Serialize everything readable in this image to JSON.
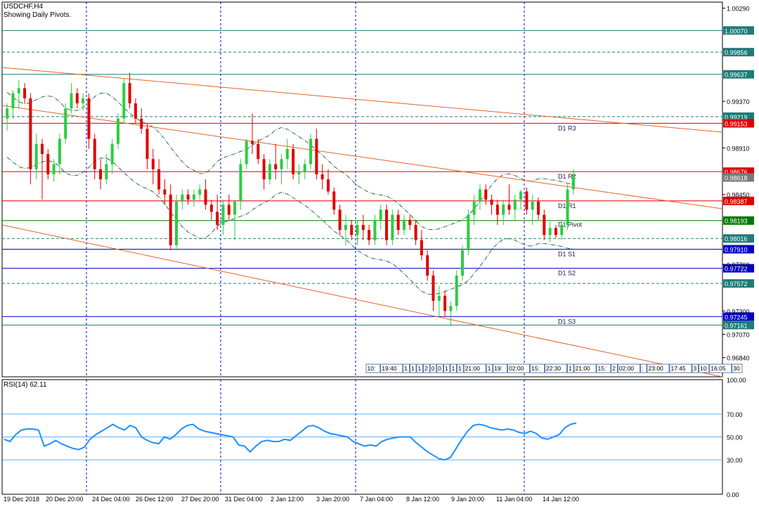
{
  "header": {
    "symbol": "USDCHF,H4",
    "subtitle": "Showing Daily Pivots."
  },
  "colors": {
    "bull": "#2ecc40",
    "bear": "#e00000",
    "trendline": "#e0652a",
    "pivot_red": "#e00000",
    "pivot_blue": "#0000cc",
    "pivot_green": "#007a00",
    "teal": "#1e7b78",
    "band": "#2a6b45",
    "rsi_line": "#1e90ff",
    "grid_v": "#0000cc"
  },
  "chart_data": [
    {
      "type": "candlestick",
      "title": "USDCHF,H4",
      "ylim": [
        0.9665,
        1.0035
      ],
      "y_ticks": [
        1.0029,
        0.9937,
        0.9891,
        0.9845,
        0.9776,
        0.973,
        0.9707,
        0.9684
      ],
      "x_ticks": [
        "19 Dec 2018",
        "20 Dec 20:00",
        "24 Dec 04:00",
        "26 Dec 12:00",
        "27 Dec 20:00",
        "31 Dec 04:00",
        "2 Jan 12:00",
        "3 Jan 20:00",
        "7 Jan 04:00",
        "8 Jan 12:00",
        "9 Jan 20:00",
        "11 Jan 04:00",
        "14 Jan 12:00"
      ],
      "horizontal_levels": [
        {
          "value": 1.0007,
          "label": "1.00070",
          "style": "solid",
          "color": "teal"
        },
        {
          "value": 0.99856,
          "label": "0.99856",
          "style": "dashed",
          "color": "teal"
        },
        {
          "value": 0.99637,
          "label": "0.99637",
          "style": "solid",
          "color": "teal"
        },
        {
          "value": 0.99219,
          "label": "0.99219",
          "style": "dashed",
          "color": "teal"
        },
        {
          "value": 0.99153,
          "label": "0.99153",
          "style": "solid",
          "color": "red",
          "name": "D1 R3"
        },
        {
          "value": 0.98676,
          "label": "0.98676",
          "style": "solid",
          "color": "red",
          "name": "D1 R2"
        },
        {
          "value": 0.98618,
          "label": "0.98618",
          "style": "none",
          "color": "gray"
        },
        {
          "value": 0.98387,
          "label": "0.98387",
          "style": "solid",
          "color": "red",
          "name": "D1 R1"
        },
        {
          "value": 0.98193,
          "label": "0.98193",
          "style": "solid",
          "color": "green",
          "name": "D1 Pivot"
        },
        {
          "value": 0.98016,
          "label": "0.98016",
          "style": "dashed",
          "color": "teal"
        },
        {
          "value": 0.9791,
          "label": "0.97910",
          "style": "solid",
          "color": "blue",
          "name": "D1 S1"
        },
        {
          "value": 0.97722,
          "label": "0.97722",
          "style": "solid",
          "color": "blue",
          "name": "D1 S2"
        },
        {
          "value": 0.97572,
          "label": "0.97572",
          "style": "dashed",
          "color": "teal"
        },
        {
          "value": 0.97245,
          "label": "0.97245",
          "style": "solid",
          "color": "blue",
          "name": "D1 S3"
        },
        {
          "value": 0.97161,
          "label": "0.97161",
          "style": "solid",
          "color": "teal"
        }
      ],
      "candles": [
        {
          "o": 0.992,
          "h": 0.9935,
          "l": 0.9908,
          "c": 0.993
        },
        {
          "o": 0.993,
          "h": 0.9948,
          "l": 0.992,
          "c": 0.9945
        },
        {
          "o": 0.9945,
          "h": 0.9958,
          "l": 0.993,
          "c": 0.995
        },
        {
          "o": 0.995,
          "h": 0.9955,
          "l": 0.9935,
          "c": 0.994
        },
        {
          "o": 0.994,
          "h": 0.9945,
          "l": 0.9855,
          "c": 0.987
        },
        {
          "o": 0.987,
          "h": 0.9905,
          "l": 0.986,
          "c": 0.9895
        },
        {
          "o": 0.9895,
          "h": 0.99,
          "l": 0.984,
          "c": 0.9885
        },
        {
          "o": 0.9885,
          "h": 0.989,
          "l": 0.986,
          "c": 0.9865
        },
        {
          "o": 0.9865,
          "h": 0.988,
          "l": 0.9858,
          "c": 0.9875
        },
        {
          "o": 0.9875,
          "h": 0.9905,
          "l": 0.9865,
          "c": 0.99
        },
        {
          "o": 0.99,
          "h": 0.9935,
          "l": 0.9895,
          "c": 0.993
        },
        {
          "o": 0.993,
          "h": 0.9955,
          "l": 0.9925,
          "c": 0.9945
        },
        {
          "o": 0.9945,
          "h": 0.995,
          "l": 0.993,
          "c": 0.9935
        },
        {
          "o": 0.9935,
          "h": 0.9945,
          "l": 0.9928,
          "c": 0.994
        },
        {
          "o": 0.994,
          "h": 0.9945,
          "l": 0.989,
          "c": 0.99
        },
        {
          "o": 0.99,
          "h": 0.9905,
          "l": 0.986,
          "c": 0.987
        },
        {
          "o": 0.987,
          "h": 0.988,
          "l": 0.985,
          "c": 0.986
        },
        {
          "o": 0.986,
          "h": 0.9885,
          "l": 0.9855,
          "c": 0.9875
        },
        {
          "o": 0.9875,
          "h": 0.99,
          "l": 0.9865,
          "c": 0.9895
        },
        {
          "o": 0.9895,
          "h": 0.9925,
          "l": 0.989,
          "c": 0.992
        },
        {
          "o": 0.992,
          "h": 0.996,
          "l": 0.9915,
          "c": 0.9955
        },
        {
          "o": 0.9955,
          "h": 0.9965,
          "l": 0.993,
          "c": 0.9935
        },
        {
          "o": 0.9935,
          "h": 0.994,
          "l": 0.9915,
          "c": 0.992
        },
        {
          "o": 0.992,
          "h": 0.993,
          "l": 0.9905,
          "c": 0.991
        },
        {
          "o": 0.991,
          "h": 0.9915,
          "l": 0.987,
          "c": 0.988
        },
        {
          "o": 0.988,
          "h": 0.989,
          "l": 0.9855,
          "c": 0.987
        },
        {
          "o": 0.987,
          "h": 0.988,
          "l": 0.9845,
          "c": 0.985
        },
        {
          "o": 0.985,
          "h": 0.986,
          "l": 0.9835,
          "c": 0.9845
        },
        {
          "o": 0.9845,
          "h": 0.9855,
          "l": 0.979,
          "c": 0.9795
        },
        {
          "o": 0.9795,
          "h": 0.9845,
          "l": 0.979,
          "c": 0.9838
        },
        {
          "o": 0.9838,
          "h": 0.985,
          "l": 0.983,
          "c": 0.9845
        },
        {
          "o": 0.9845,
          "h": 0.985,
          "l": 0.9835,
          "c": 0.984
        },
        {
          "o": 0.984,
          "h": 0.985,
          "l": 0.9833,
          "c": 0.9845
        },
        {
          "o": 0.9845,
          "h": 0.9855,
          "l": 0.984,
          "c": 0.985
        },
        {
          "o": 0.985,
          "h": 0.986,
          "l": 0.983,
          "c": 0.9835
        },
        {
          "o": 0.9835,
          "h": 0.984,
          "l": 0.982,
          "c": 0.9828
        },
        {
          "o": 0.9828,
          "h": 0.9845,
          "l": 0.981,
          "c": 0.9815
        },
        {
          "o": 0.9815,
          "h": 0.984,
          "l": 0.9805,
          "c": 0.9835
        },
        {
          "o": 0.9835,
          "h": 0.9845,
          "l": 0.982,
          "c": 0.9825
        },
        {
          "o": 0.9825,
          "h": 0.984,
          "l": 0.98,
          "c": 0.9838
        },
        {
          "o": 0.9838,
          "h": 0.988,
          "l": 0.983,
          "c": 0.9875
        },
        {
          "o": 0.9875,
          "h": 0.99,
          "l": 0.987,
          "c": 0.9898
        },
        {
          "o": 0.9898,
          "h": 0.9925,
          "l": 0.9885,
          "c": 0.9895
        },
        {
          "o": 0.9895,
          "h": 0.99,
          "l": 0.9875,
          "c": 0.988
        },
        {
          "o": 0.988,
          "h": 0.9885,
          "l": 0.985,
          "c": 0.986
        },
        {
          "o": 0.986,
          "h": 0.988,
          "l": 0.9855,
          "c": 0.9875
        },
        {
          "o": 0.9875,
          "h": 0.9895,
          "l": 0.986,
          "c": 0.987
        },
        {
          "o": 0.987,
          "h": 0.9885,
          "l": 0.9855,
          "c": 0.988
        },
        {
          "o": 0.988,
          "h": 0.99,
          "l": 0.987,
          "c": 0.989
        },
        {
          "o": 0.989,
          "h": 0.9895,
          "l": 0.986,
          "c": 0.9865
        },
        {
          "o": 0.9865,
          "h": 0.9875,
          "l": 0.9855,
          "c": 0.9868
        },
        {
          "o": 0.9868,
          "h": 0.988,
          "l": 0.986,
          "c": 0.9875
        },
        {
          "o": 0.9875,
          "h": 0.9905,
          "l": 0.987,
          "c": 0.99
        },
        {
          "o": 0.99,
          "h": 0.991,
          "l": 0.986,
          "c": 0.9865
        },
        {
          "o": 0.9865,
          "h": 0.9875,
          "l": 0.985,
          "c": 0.986
        },
        {
          "o": 0.986,
          "h": 0.987,
          "l": 0.9845,
          "c": 0.9848
        },
        {
          "o": 0.9848,
          "h": 0.9852,
          "l": 0.9825,
          "c": 0.983
        },
        {
          "o": 0.983,
          "h": 0.9835,
          "l": 0.9805,
          "c": 0.981
        },
        {
          "o": 0.981,
          "h": 0.9825,
          "l": 0.9795,
          "c": 0.9815
        },
        {
          "o": 0.9815,
          "h": 0.982,
          "l": 0.98,
          "c": 0.9805
        },
        {
          "o": 0.9805,
          "h": 0.982,
          "l": 0.9795,
          "c": 0.9815
        },
        {
          "o": 0.9815,
          "h": 0.9825,
          "l": 0.98,
          "c": 0.981
        },
        {
          "o": 0.981,
          "h": 0.9815,
          "l": 0.9795,
          "c": 0.98
        },
        {
          "o": 0.98,
          "h": 0.9825,
          "l": 0.9795,
          "c": 0.982
        },
        {
          "o": 0.982,
          "h": 0.9835,
          "l": 0.981,
          "c": 0.983
        },
        {
          "o": 0.983,
          "h": 0.9835,
          "l": 0.9795,
          "c": 0.98
        },
        {
          "o": 0.98,
          "h": 0.983,
          "l": 0.9795,
          "c": 0.9825
        },
        {
          "o": 0.9825,
          "h": 0.983,
          "l": 0.9805,
          "c": 0.981
        },
        {
          "o": 0.981,
          "h": 0.9825,
          "l": 0.9805,
          "c": 0.982
        },
        {
          "o": 0.982,
          "h": 0.9825,
          "l": 0.981,
          "c": 0.9815
        },
        {
          "o": 0.9815,
          "h": 0.982,
          "l": 0.9795,
          "c": 0.98
        },
        {
          "o": 0.98,
          "h": 0.981,
          "l": 0.978,
          "c": 0.9785
        },
        {
          "o": 0.9785,
          "h": 0.979,
          "l": 0.976,
          "c": 0.9765
        },
        {
          "o": 0.9765,
          "h": 0.977,
          "l": 0.973,
          "c": 0.974
        },
        {
          "o": 0.974,
          "h": 0.9755,
          "l": 0.9725,
          "c": 0.9745
        },
        {
          "o": 0.9745,
          "h": 0.975,
          "l": 0.9725,
          "c": 0.973
        },
        {
          "o": 0.973,
          "h": 0.974,
          "l": 0.9715,
          "c": 0.9735
        },
        {
          "o": 0.9735,
          "h": 0.977,
          "l": 0.973,
          "c": 0.9765
        },
        {
          "o": 0.9765,
          "h": 0.9795,
          "l": 0.976,
          "c": 0.979
        },
        {
          "o": 0.979,
          "h": 0.983,
          "l": 0.9785,
          "c": 0.9825
        },
        {
          "o": 0.9825,
          "h": 0.9845,
          "l": 0.9815,
          "c": 0.9838
        },
        {
          "o": 0.9838,
          "h": 0.9855,
          "l": 0.983,
          "c": 0.985
        },
        {
          "o": 0.985,
          "h": 0.9855,
          "l": 0.9835,
          "c": 0.984
        },
        {
          "o": 0.984,
          "h": 0.9845,
          "l": 0.9825,
          "c": 0.9835
        },
        {
          "o": 0.9835,
          "h": 0.984,
          "l": 0.9815,
          "c": 0.9825
        },
        {
          "o": 0.9825,
          "h": 0.984,
          "l": 0.9815,
          "c": 0.9835
        },
        {
          "o": 0.9835,
          "h": 0.9855,
          "l": 0.9825,
          "c": 0.983
        },
        {
          "o": 0.983,
          "h": 0.9845,
          "l": 0.982,
          "c": 0.984
        },
        {
          "o": 0.984,
          "h": 0.985,
          "l": 0.983,
          "c": 0.9848
        },
        {
          "o": 0.9848,
          "h": 0.9852,
          "l": 0.9825,
          "c": 0.983
        },
        {
          "o": 0.983,
          "h": 0.9845,
          "l": 0.9815,
          "c": 0.9838
        },
        {
          "o": 0.9838,
          "h": 0.9842,
          "l": 0.982,
          "c": 0.9825
        },
        {
          "o": 0.9825,
          "h": 0.983,
          "l": 0.98,
          "c": 0.9805
        },
        {
          "o": 0.9805,
          "h": 0.9818,
          "l": 0.9798,
          "c": 0.9812
        },
        {
          "o": 0.9812,
          "h": 0.9815,
          "l": 0.9802,
          "c": 0.9805
        },
        {
          "o": 0.9805,
          "h": 0.982,
          "l": 0.98,
          "c": 0.9815
        },
        {
          "o": 0.9815,
          "h": 0.9855,
          "l": 0.981,
          "c": 0.985
        },
        {
          "o": 0.985,
          "h": 0.987,
          "l": 0.9845,
          "c": 0.9865
        }
      ],
      "trendlines_visible": 3,
      "bands": "dash-dot envelope around price"
    },
    {
      "type": "line",
      "title": "RSI(14) 62.11",
      "ylim": [
        0,
        100
      ],
      "y_ticks": [
        100.0,
        70.0,
        50.0,
        30.0,
        0.0
      ],
      "levels": [
        70,
        50,
        30
      ],
      "values": [
        48,
        46,
        52,
        56,
        57,
        57,
        56,
        42,
        44,
        47,
        44,
        42,
        40,
        39,
        41,
        48,
        52,
        55,
        58,
        61,
        58,
        56,
        60,
        58,
        50,
        47,
        45,
        44,
        50,
        48,
        52,
        57,
        60,
        61,
        57,
        55,
        54,
        53,
        52,
        51,
        50,
        43,
        42,
        37,
        42,
        46,
        47,
        46,
        46,
        48,
        47,
        51,
        55,
        59,
        60,
        58,
        55,
        53,
        52,
        51,
        50,
        46,
        44,
        42,
        43,
        42,
        46,
        48,
        49,
        50,
        50,
        50,
        45,
        41,
        37,
        34,
        31,
        30,
        32,
        40,
        48,
        55,
        60,
        61,
        60,
        58,
        57,
        56,
        57,
        56,
        54,
        53,
        55,
        53,
        49,
        48,
        50,
        52,
        58,
        61,
        62.11
      ]
    }
  ],
  "time_labels": [
    "10:",
    "19:40",
    "1",
    "1",
    "1",
    "2",
    "0",
    "0",
    "1",
    "1",
    "1",
    "21:00",
    "1",
    "19:",
    "02:00",
    "15:",
    "22:30",
    "1",
    "21:00",
    "15:",
    "2",
    "02:00",
    ":",
    "23:00",
    "17:45",
    "3",
    "10",
    "16:05",
    "30"
  ]
}
